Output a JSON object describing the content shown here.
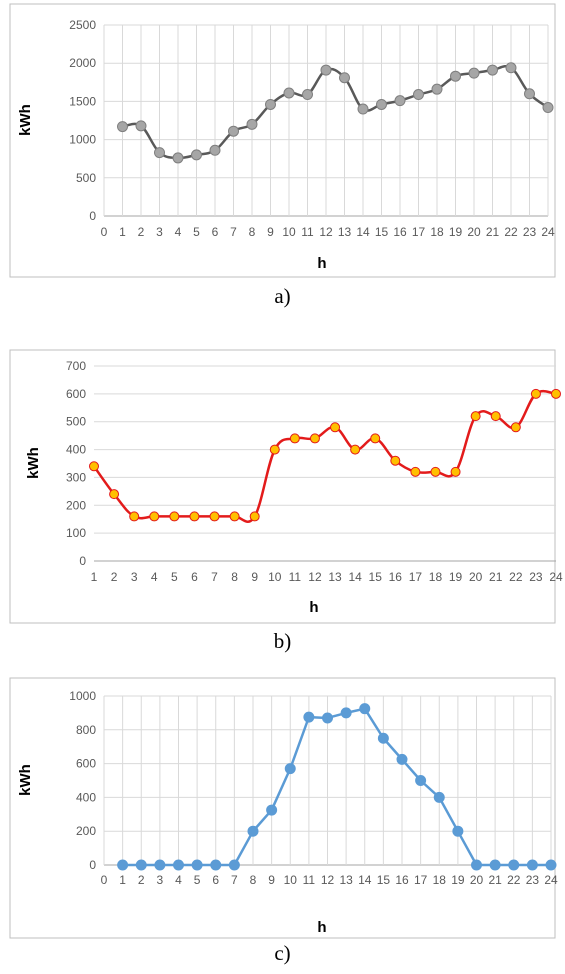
{
  "chart_data": [
    {
      "type": "line",
      "caption": "a)",
      "xlabel": "h",
      "ylabel": "kWh",
      "xticks": [
        0,
        1,
        2,
        3,
        4,
        5,
        6,
        7,
        8,
        9,
        10,
        11,
        12,
        13,
        14,
        15,
        16,
        17,
        18,
        19,
        20,
        21,
        22,
        23,
        24
      ],
      "yticks": [
        0,
        500,
        1000,
        1500,
        2000,
        2500
      ],
      "ylim": [
        0,
        2500
      ],
      "grid": true,
      "smooth": true,
      "x": [
        1,
        2,
        3,
        4,
        5,
        6,
        7,
        8,
        9,
        10,
        11,
        12,
        13,
        14,
        15,
        16,
        17,
        18,
        19,
        20,
        21,
        22,
        23,
        24
      ],
      "series": [
        {
          "values": [
            1170,
            1180,
            830,
            760,
            800,
            860,
            1110,
            1200,
            1460,
            1610,
            1590,
            1910,
            1810,
            1400,
            1460,
            1510,
            1590,
            1660,
            1830,
            1870,
            1910,
            1940,
            1600,
            1420
          ],
          "color": "#595959",
          "marker_color": "#a6a6a6",
          "marker_edge": "#7f7f7f"
        }
      ]
    },
    {
      "type": "line",
      "caption": "b)",
      "xlabel": "h",
      "ylabel": "kWh",
      "xticks": [
        1,
        2,
        3,
        4,
        5,
        6,
        7,
        8,
        9,
        10,
        11,
        12,
        13,
        14,
        15,
        16,
        17,
        18,
        19,
        20,
        21,
        22,
        23,
        24
      ],
      "yticks": [
        0,
        100,
        200,
        300,
        400,
        500,
        600,
        700
      ],
      "ylim": [
        0,
        700
      ],
      "grid": false,
      "smooth": true,
      "x": [
        1,
        2,
        3,
        4,
        5,
        6,
        7,
        8,
        9,
        10,
        11,
        12,
        13,
        14,
        15,
        16,
        17,
        18,
        19,
        20,
        21,
        22,
        23,
        24
      ],
      "series": [
        {
          "values": [
            340,
            240,
            160,
            160,
            160,
            160,
            160,
            160,
            160,
            400,
            440,
            440,
            480,
            400,
            440,
            360,
            320,
            320,
            320,
            520,
            520,
            480,
            600,
            600
          ],
          "color": "#e31b1b",
          "marker_color": "#ffc000",
          "marker_edge": "#e31b1b"
        }
      ]
    },
    {
      "type": "line",
      "caption": "c)",
      "xlabel": "h",
      "ylabel": "kWh",
      "xticks": [
        0,
        1,
        2,
        3,
        4,
        5,
        6,
        7,
        8,
        9,
        10,
        11,
        12,
        13,
        14,
        15,
        16,
        17,
        18,
        19,
        20,
        21,
        22,
        23,
        24
      ],
      "yticks": [
        0,
        200,
        400,
        600,
        800,
        1000
      ],
      "ylim": [
        0,
        1000
      ],
      "grid": true,
      "smooth": false,
      "x": [
        1,
        2,
        3,
        4,
        5,
        6,
        7,
        8,
        9,
        10,
        11,
        12,
        13,
        14,
        15,
        16,
        17,
        18,
        19,
        20,
        21,
        22,
        23,
        24
      ],
      "series": [
        {
          "values": [
            0,
            0,
            0,
            0,
            0,
            0,
            0,
            200,
            325,
            570,
            875,
            870,
            900,
            925,
            750,
            625,
            500,
            400,
            200,
            0,
            0,
            0,
            0,
            0
          ],
          "color": "#5b9bd5",
          "marker_color": "#5b9bd5",
          "marker_edge": "#5b9bd5"
        }
      ]
    }
  ]
}
